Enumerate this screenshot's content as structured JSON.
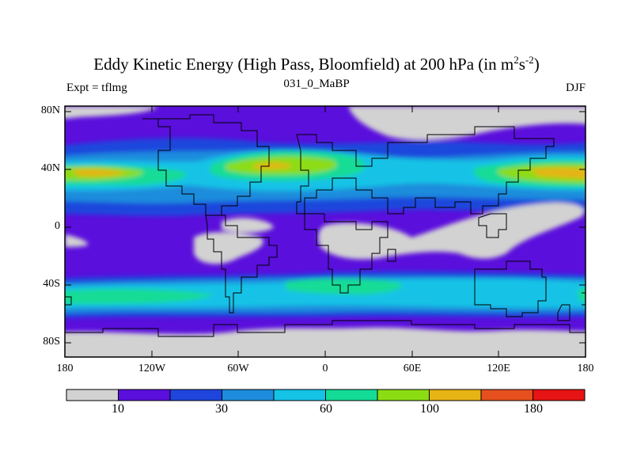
{
  "title": {
    "main": "Eddy Kinetic Energy (High Pass, Bloomfield) at 200 hPa (in m",
    "sup1": "2",
    "mid": "s",
    "sup2": "-2",
    "end": ")"
  },
  "subtitle_left": "Expt = tflmg",
  "subtitle_center": "031_0_MaBP",
  "subtitle_right": "DJF",
  "lat_labels": [
    "80N",
    "40N",
    "0",
    "40S",
    "80S"
  ],
  "lon_labels": [
    "180",
    "120W",
    "60W",
    "0",
    "60E",
    "120E",
    "180"
  ],
  "colorbar": {
    "colors": [
      "#d2d2d2",
      "#5a0fdc",
      "#1e46dc",
      "#1e8cdc",
      "#14c3e6",
      "#14dc96",
      "#8cdc14",
      "#e6b414",
      "#e6501e",
      "#e61414"
    ],
    "labels": [
      "10",
      "30",
      "60",
      "100",
      "180"
    ]
  }
}
